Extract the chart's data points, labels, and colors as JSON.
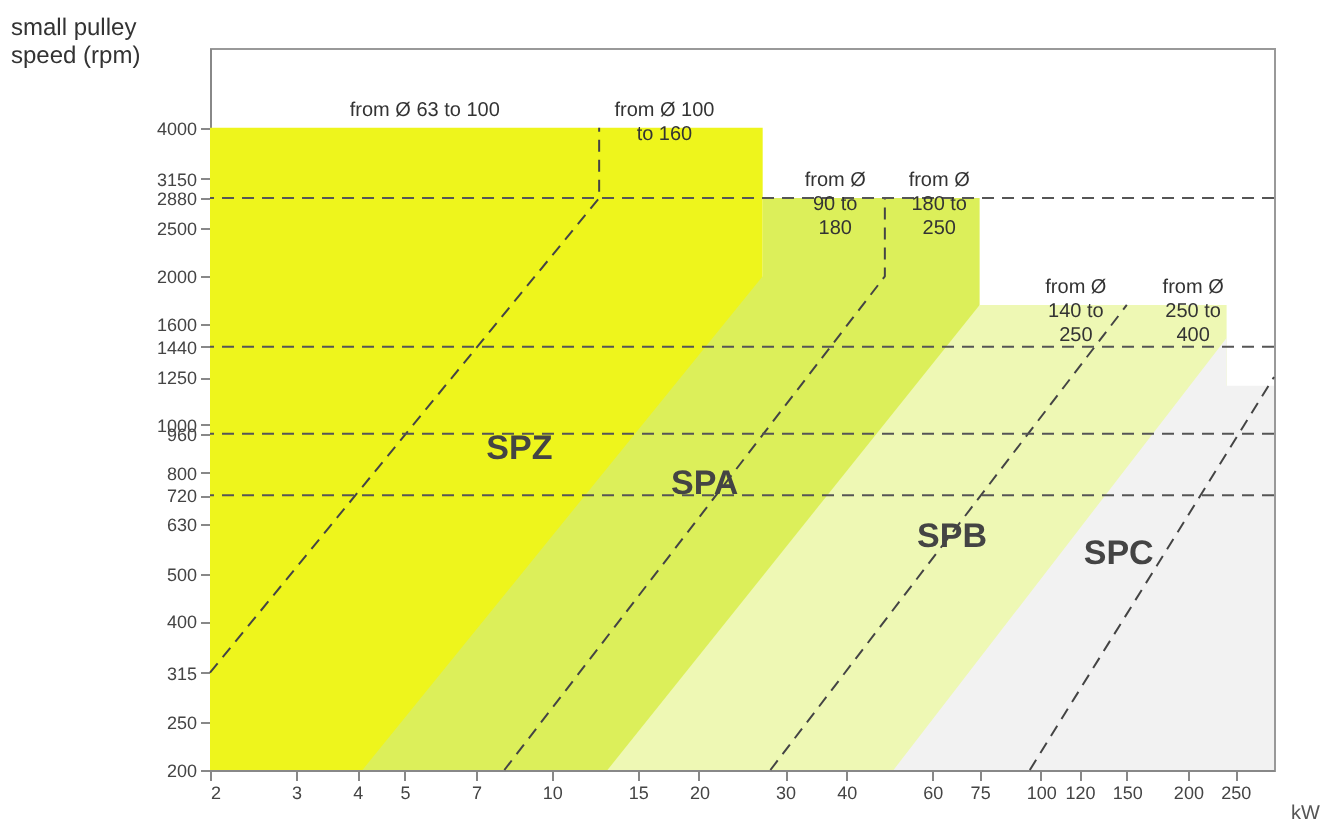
{
  "chart_data": {
    "type": "area",
    "xlabel": "kW",
    "ylabel": "small pulley\nspeed (rpm)",
    "log": "xy",
    "xlim": [
      2,
      300
    ],
    "ylim": [
      200,
      5800
    ],
    "xticks": [
      2,
      3,
      4,
      5,
      7,
      10,
      15,
      20,
      30,
      40,
      60,
      75,
      100,
      120,
      150,
      200,
      250
    ],
    "yticks": [
      200,
      250,
      315,
      400,
      500,
      630,
      720,
      800,
      960,
      1000,
      1250,
      1440,
      1600,
      2000,
      2500,
      2880,
      3150,
      4000
    ],
    "series": [
      {
        "name": "SPZ",
        "color": "#eef51c",
        "x": [
          2,
          27
        ],
        "values": [
          4000,
          4000
        ]
      },
      {
        "name": "SPA",
        "color": "#dcef5a",
        "x": [
          4.1,
          27,
          27,
          75
        ],
        "values": [
          200,
          2000,
          2880,
          2880
        ]
      },
      {
        "name": "SPB",
        "color": "#eef8b4",
        "x": [
          13,
          75,
          240
        ],
        "values": [
          200,
          1750,
          1750
        ]
      },
      {
        "name": "SPC",
        "color": "#f2f2f2",
        "x": [
          50,
          240,
          240,
          300
        ],
        "values": [
          200,
          1500,
          1200,
          1200
        ]
      },
      {
        "type": "line",
        "color": "#444444",
        "line_style": "dashed",
        "x": [
          2,
          12.5,
          12.5
        ],
        "values": [
          315,
          2880,
          4000
        ]
      },
      {
        "type": "line",
        "color": "#444444",
        "line_style": "dashed",
        "x": [
          8,
          48,
          48
        ],
        "values": [
          200,
          2000,
          2880
        ]
      },
      {
        "type": "line",
        "color": "#444444",
        "line_style": "dashed",
        "x": [
          28,
          150
        ],
        "values": [
          200,
          1750
        ]
      },
      {
        "type": "line",
        "color": "#444444",
        "line_style": "dashed",
        "x": [
          95,
          300
        ],
        "values": [
          200,
          1250
        ]
      }
    ],
    "ref_lines": [
      {
        "axis": "y",
        "value": 2880,
        "color": "#555555",
        "line_style": "dashed"
      },
      {
        "axis": "y",
        "value": 1440,
        "color": "#555555",
        "line_style": "dashed"
      },
      {
        "axis": "y",
        "value": 960,
        "color": "#555555",
        "line_style": "dashed"
      },
      {
        "axis": "y",
        "value": 720,
        "color": "#555555",
        "line_style": "dashed"
      }
    ],
    "annotations": [
      {
        "text": "from Ø 63 to 100",
        "x": 5.5,
        "y": 4000
      },
      {
        "text": "from Ø 100\nto 160",
        "x": 17,
        "y": 4000
      },
      {
        "text": "from Ø\n90 to\n180",
        "x": 38,
        "y": 2880
      },
      {
        "text": "from Ø\n180 to\n250",
        "x": 62,
        "y": 2880
      },
      {
        "text": "from Ø\n140 to\n250",
        "x": 118,
        "y": 1750
      },
      {
        "text": "from Ø\n250 to\n400",
        "x": 205,
        "y": 1750
      }
    ],
    "grid": false
  }
}
